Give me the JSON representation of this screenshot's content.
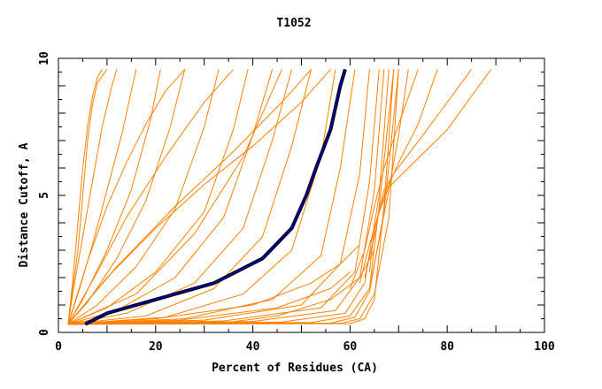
{
  "chart_data": {
    "type": "line",
    "title": "T1052",
    "xlabel": "Percent of Residues (CA)",
    "ylabel": "Distance Cutoff, A",
    "xlim": [
      0,
      100
    ],
    "ylim": [
      0,
      10
    ],
    "x_ticks": [
      "0",
      "20",
      "40",
      "60",
      "80",
      "100"
    ],
    "y_ticks": [
      "0",
      "5",
      "10"
    ],
    "grid": false,
    "colors": {
      "models": "#ff8000",
      "highlight": "#0000a0",
      "highlight_edge": "#000000"
    },
    "series": [
      {
        "style": "orange",
        "x": [
          2,
          3,
          4,
          5,
          6,
          7,
          8,
          9
        ],
        "y": [
          0.3,
          2,
          4,
          6,
          7.5,
          8.6,
          9.3,
          9.6
        ]
      },
      {
        "style": "orange",
        "x": [
          2,
          3,
          5,
          7,
          9,
          11,
          12
        ],
        "y": [
          0.3,
          1.5,
          3.5,
          5.5,
          7.5,
          9,
          9.6
        ]
      },
      {
        "style": "orange",
        "x": [
          2,
          4,
          7,
          10,
          13,
          15,
          16
        ],
        "y": [
          0.3,
          1.4,
          3.2,
          5.2,
          7.2,
          8.8,
          9.6
        ]
      },
      {
        "style": "orange",
        "x": [
          2,
          5,
          10,
          15,
          19,
          21
        ],
        "y": [
          0.3,
          1.2,
          3,
          5.2,
          7.8,
          9.6
        ]
      },
      {
        "style": "orange",
        "x": [
          2,
          6,
          12,
          18,
          23,
          26
        ],
        "y": [
          0.3,
          1.1,
          2.7,
          4.8,
          7.5,
          9.6
        ]
      },
      {
        "style": "orange",
        "x": [
          2,
          8,
          16,
          24,
          30,
          33
        ],
        "y": [
          0.3,
          1,
          2.4,
          4.5,
          7.5,
          9.6
        ]
      },
      {
        "style": "orange",
        "x": [
          2,
          10,
          20,
          30,
          36,
          39
        ],
        "y": [
          0.3,
          0.9,
          2.2,
          4.4,
          7.4,
          9.6
        ]
      },
      {
        "style": "orange",
        "x": [
          2,
          12,
          24,
          34,
          40,
          44
        ],
        "y": [
          0.3,
          0.8,
          2,
          4.2,
          7.2,
          9.6
        ]
      },
      {
        "style": "orange",
        "x": [
          2,
          14,
          28,
          38,
          44,
          48
        ],
        "y": [
          0.3,
          0.7,
          1.8,
          3.8,
          7,
          9.6
        ]
      },
      {
        "style": "orange",
        "x": [
          2,
          18,
          32,
          42,
          48,
          52
        ],
        "y": [
          0.3,
          0.6,
          1.6,
          3.5,
          6.8,
          9.6
        ]
      },
      {
        "style": "orange",
        "x": [
          2,
          22,
          38,
          48,
          54,
          57
        ],
        "y": [
          0.3,
          0.55,
          1.4,
          3,
          6.4,
          9.6
        ]
      },
      {
        "style": "orange",
        "x": [
          2,
          26,
          44,
          54,
          58,
          61
        ],
        "y": [
          0.3,
          0.5,
          1.2,
          2.8,
          6,
          9.6
        ]
      },
      {
        "style": "orange",
        "x": [
          2,
          30,
          50,
          58,
          62,
          64
        ],
        "y": [
          0.3,
          0.45,
          1,
          2.5,
          5.8,
          9.6
        ]
      },
      {
        "style": "orange",
        "x": [
          2,
          34,
          54,
          61,
          64,
          66
        ],
        "y": [
          0.3,
          0.42,
          0.9,
          2.2,
          5.5,
          9.6
        ]
      },
      {
        "style": "orange",
        "x": [
          2,
          40,
          57,
          62,
          65,
          67
        ],
        "y": [
          0.3,
          0.4,
          0.8,
          2,
          5.2,
          9.6
        ]
      },
      {
        "style": "orange",
        "x": [
          2,
          46,
          59,
          63,
          66,
          68
        ],
        "y": [
          0.3,
          0.38,
          0.7,
          1.8,
          5,
          9.6
        ]
      },
      {
        "style": "orange",
        "x": [
          2,
          52,
          60,
          64,
          66,
          69
        ],
        "y": [
          0.3,
          0.36,
          0.6,
          1.6,
          4.6,
          9.6
        ]
      },
      {
        "style": "orange",
        "x": [
          2,
          56,
          61,
          64,
          67,
          70
        ],
        "y": [
          0.3,
          0.34,
          0.55,
          1.5,
          4.4,
          9.6
        ]
      },
      {
        "style": "orange",
        "x": [
          2,
          58,
          62,
          65,
          68,
          70
        ],
        "y": [
          0.3,
          0.33,
          0.5,
          1.4,
          4.2,
          9.6
        ]
      },
      {
        "style": "orange",
        "x": [
          2,
          60,
          63,
          65,
          67,
          69
        ],
        "y": [
          0.3,
          0.32,
          0.5,
          1.2,
          4.6,
          9.6
        ]
      },
      {
        "style": "orange",
        "x": [
          2,
          20,
          40,
          52,
          58,
          62
        ],
        "y": [
          0.3,
          0.5,
          1,
          1.8,
          2.5,
          3.2
        ]
      },
      {
        "style": "orange",
        "x": [
          2,
          25,
          45,
          56,
          60
        ],
        "y": [
          0.3,
          0.45,
          0.9,
          1.6,
          2.2
        ]
      },
      {
        "style": "orange",
        "x": [
          2,
          10,
          20,
          30,
          40,
          50,
          56
        ],
        "y": [
          0.3,
          2,
          3.8,
          5.4,
          6.8,
          8.4,
          9.6
        ]
      },
      {
        "style": "orange",
        "x": [
          2,
          12,
          24,
          36,
          46,
          52
        ],
        "y": [
          0.3,
          2.4,
          4.6,
          6.6,
          8.4,
          9.6
        ]
      },
      {
        "style": "orange",
        "x": [
          2,
          6,
          10,
          14,
          18,
          22,
          26
        ],
        "y": [
          0.3,
          2.6,
          4.6,
          6.2,
          7.6,
          8.8,
          9.6
        ]
      },
      {
        "style": "orange",
        "x": [
          2,
          8,
          14,
          22,
          30,
          36
        ],
        "y": [
          0.3,
          2.2,
          4.2,
          6.4,
          8.4,
          9.6
        ]
      },
      {
        "style": "orange",
        "x": [
          2,
          16,
          28,
          38,
          46
        ],
        "y": [
          0.3,
          1.4,
          3.6,
          6.4,
          9.6
        ]
      },
      {
        "style": "orange",
        "x": [
          2,
          4,
          5,
          6,
          7,
          8,
          10
        ],
        "y": [
          0.3,
          3,
          5,
          7,
          8.3,
          9.1,
          9.6
        ]
      },
      {
        "style": "orange",
        "x": [
          63,
          65,
          66,
          67,
          69,
          75,
          85
        ],
        "y": [
          2,
          3.5,
          4.5,
          5.2,
          5.8,
          7.2,
          9.6
        ]
      },
      {
        "style": "orange",
        "x": [
          62,
          64,
          66,
          68,
          72,
          80,
          89
        ],
        "y": [
          1.8,
          3.2,
          4.4,
          5.3,
          6,
          7.4,
          9.6
        ]
      },
      {
        "style": "orange",
        "x": [
          64,
          65,
          67,
          70,
          74,
          78
        ],
        "y": [
          2.2,
          3.8,
          5,
          6.2,
          7.6,
          9.6
        ]
      },
      {
        "style": "orange",
        "x": [
          60,
          63,
          65,
          67,
          70,
          74
        ],
        "y": [
          1.6,
          3,
          4.6,
          6,
          7.6,
          9.6
        ]
      },
      {
        "style": "orange",
        "x": [
          64,
          66,
          68,
          70,
          72
        ],
        "y": [
          1.6,
          3.4,
          5.2,
          7.2,
          9.6
        ]
      },
      {
        "style": "orange",
        "x": [
          32,
          45,
          56,
          62,
          65
        ],
        "y": [
          0.3,
          0.6,
          1.2,
          2,
          3
        ]
      },
      {
        "style": "highlight",
        "x": [
          5.5,
          10,
          20,
          32,
          42,
          48,
          51,
          53,
          56,
          58,
          59
        ],
        "y": [
          0.3,
          0.7,
          1.2,
          1.8,
          2.7,
          3.8,
          5,
          6,
          7.4,
          9,
          9.6
        ]
      }
    ]
  }
}
